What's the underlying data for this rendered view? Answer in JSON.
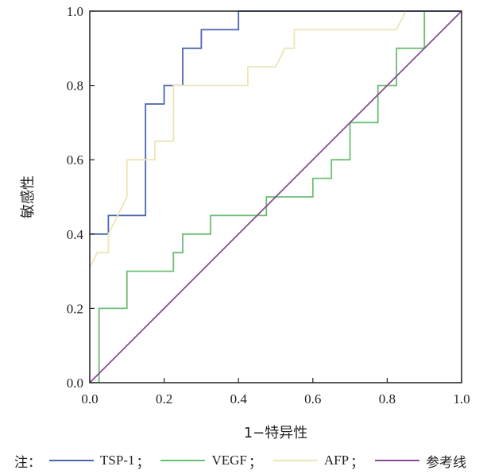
{
  "chart_data": {
    "type": "line",
    "xlabel": "1−特异性",
    "ylabel": "敏感性",
    "xlim": [
      0,
      1
    ],
    "ylim": [
      0,
      1
    ],
    "x_ticks": [
      "0.0",
      "0.2",
      "0.4",
      "0.6",
      "0.8",
      "1.0"
    ],
    "y_ticks": [
      "0.0",
      "0.2",
      "0.4",
      "0.6",
      "0.8",
      "1.0"
    ],
    "grid": false,
    "legend_position": "bottom",
    "legend_prefix": "注：",
    "legend_separator": "；",
    "series": [
      {
        "name": "TSP-1",
        "color": "#4a66ad",
        "points": [
          [
            0,
            0.4
          ],
          [
            0.05,
            0.4
          ],
          [
            0.05,
            0.45
          ],
          [
            0.15,
            0.45
          ],
          [
            0.15,
            0.75
          ],
          [
            0.2,
            0.75
          ],
          [
            0.2,
            0.8
          ],
          [
            0.25,
            0.8
          ],
          [
            0.25,
            0.9
          ],
          [
            0.3,
            0.9
          ],
          [
            0.3,
            0.95
          ],
          [
            0.4,
            0.95
          ],
          [
            0.4,
            1.0
          ],
          [
            1.0,
            1.0
          ]
        ]
      },
      {
        "name": "VEGF",
        "color": "#6bbf72",
        "points": [
          [
            0.025,
            0
          ],
          [
            0.025,
            0.2
          ],
          [
            0.1,
            0.2
          ],
          [
            0.1,
            0.3
          ],
          [
            0.225,
            0.3
          ],
          [
            0.225,
            0.35
          ],
          [
            0.25,
            0.35
          ],
          [
            0.25,
            0.4
          ],
          [
            0.325,
            0.4
          ],
          [
            0.325,
            0.45
          ],
          [
            0.475,
            0.45
          ],
          [
            0.475,
            0.5
          ],
          [
            0.6,
            0.5
          ],
          [
            0.6,
            0.55
          ],
          [
            0.65,
            0.55
          ],
          [
            0.65,
            0.6
          ],
          [
            0.7,
            0.6
          ],
          [
            0.7,
            0.7
          ],
          [
            0.775,
            0.7
          ],
          [
            0.775,
            0.8
          ],
          [
            0.825,
            0.8
          ],
          [
            0.825,
            0.9
          ],
          [
            0.9,
            0.9
          ],
          [
            0.9,
            1.0
          ]
        ]
      },
      {
        "name": "AFP",
        "color": "#ece5b8",
        "points": [
          [
            0,
            0.31
          ],
          [
            0.02,
            0.35
          ],
          [
            0.05,
            0.35
          ],
          [
            0.05,
            0.4
          ],
          [
            0.1,
            0.5
          ],
          [
            0.1,
            0.6
          ],
          [
            0.175,
            0.6
          ],
          [
            0.175,
            0.65
          ],
          [
            0.225,
            0.65
          ],
          [
            0.225,
            0.8
          ],
          [
            0.425,
            0.8
          ],
          [
            0.425,
            0.85
          ],
          [
            0.5,
            0.85
          ],
          [
            0.525,
            0.9
          ],
          [
            0.55,
            0.9
          ],
          [
            0.55,
            0.95
          ],
          [
            0.825,
            0.95
          ],
          [
            0.85,
            1.0
          ]
        ]
      },
      {
        "name": "参考线",
        "color": "#8b4a97",
        "points": [
          [
            0,
            0
          ],
          [
            1,
            1
          ]
        ]
      }
    ]
  }
}
